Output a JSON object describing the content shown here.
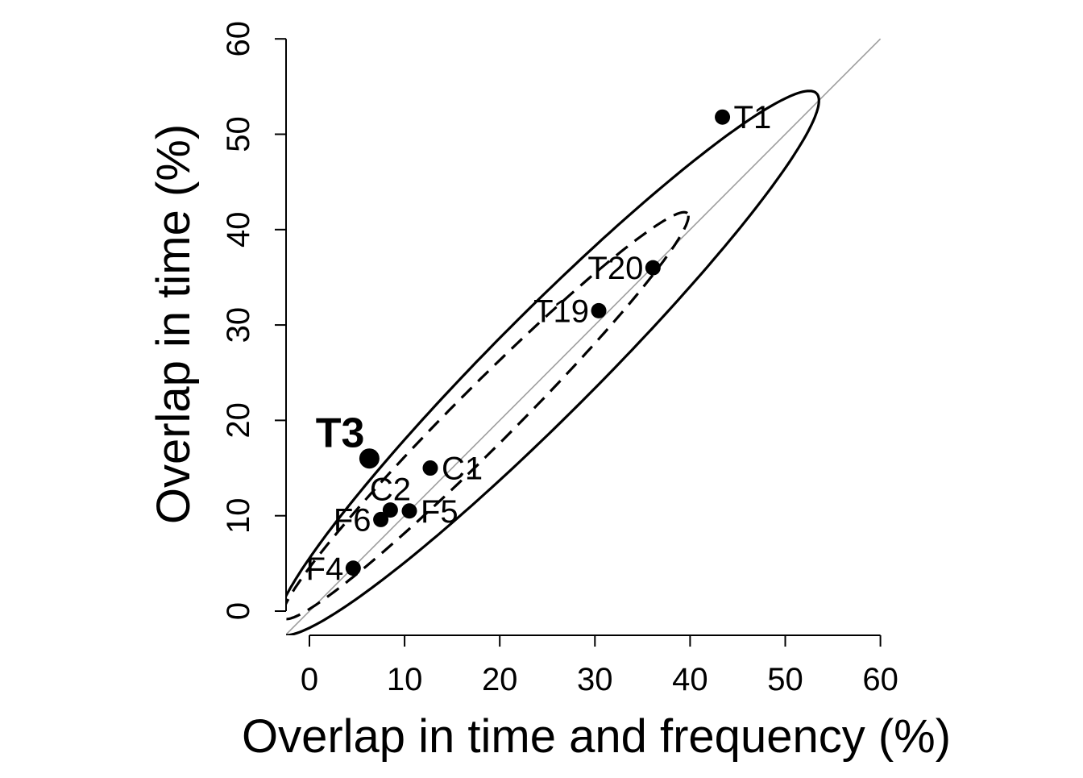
{
  "chart_data": {
    "type": "scatter",
    "title": "",
    "xlabel": "Overlap in time and frequency (%)",
    "ylabel": "Overlap in time (%)",
    "xlim": [
      -2.5,
      60
    ],
    "ylim": [
      -2.5,
      60
    ],
    "xticks": [
      0,
      10,
      20,
      30,
      40,
      50,
      60
    ],
    "yticks": [
      0,
      10,
      20,
      30,
      40,
      50,
      60
    ],
    "grid": false,
    "reference_line": {
      "slope": 1,
      "intercept": 0,
      "color": "#9e9e9e"
    },
    "points": [
      {
        "label": "T1",
        "x": 43.4,
        "y": 51.8,
        "highlight": false,
        "label_side": "right"
      },
      {
        "label": "T20",
        "x": 36.1,
        "y": 36.0,
        "highlight": false,
        "label_side": "left"
      },
      {
        "label": "T19",
        "x": 30.4,
        "y": 31.5,
        "highlight": false,
        "label_side": "left"
      },
      {
        "label": "T3",
        "x": 6.3,
        "y": 16.0,
        "highlight": true,
        "label_side": "upper-left"
      },
      {
        "label": "C1",
        "x": 12.7,
        "y": 15.0,
        "highlight": false,
        "label_side": "right"
      },
      {
        "label": "C2",
        "x": 8.5,
        "y": 10.6,
        "highlight": false,
        "label_side": "above"
      },
      {
        "label": "F5",
        "x": 10.5,
        "y": 10.5,
        "highlight": false,
        "label_side": "right"
      },
      {
        "label": "F6",
        "x": 7.5,
        "y": 9.6,
        "highlight": false,
        "label_side": "left"
      },
      {
        "label": "F4",
        "x": 4.6,
        "y": 4.5,
        "highlight": false,
        "label_side": "left"
      }
    ],
    "ellipses": [
      {
        "name": "",
        "style": "solid",
        "center": [
          25.0,
          26.0
        ],
        "major_direction": [
          1,
          1
        ],
        "semi_major": 40.0,
        "semi_minor": 5.4
      },
      {
        "name": "",
        "style": "dashed",
        "center": [
          18.5,
          20.5
        ],
        "major_direction": [
          1,
          1
        ],
        "semi_major": 30.0,
        "semi_minor": 3.1
      }
    ]
  }
}
